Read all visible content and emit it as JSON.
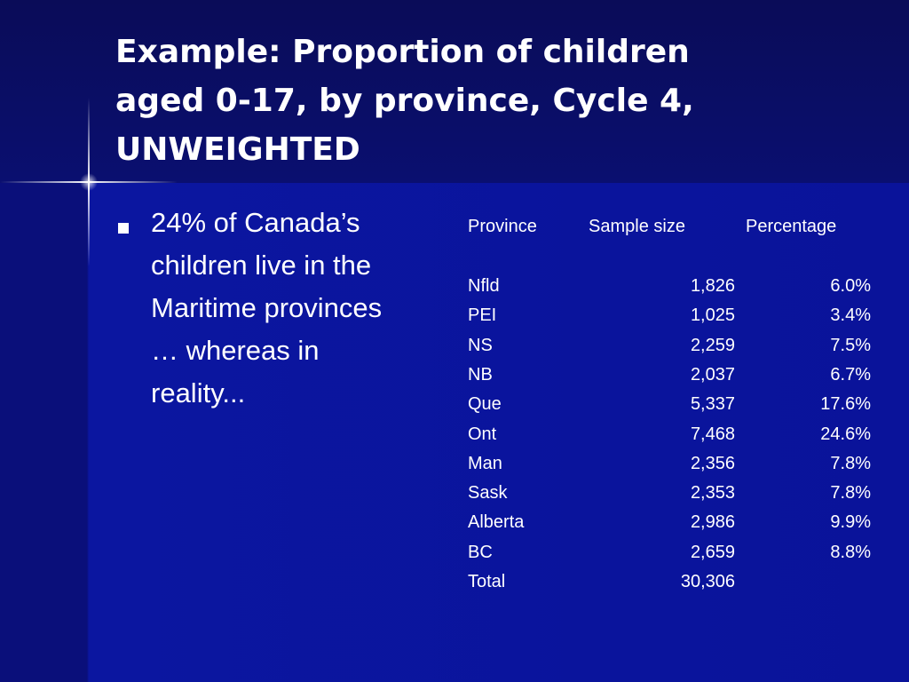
{
  "slide": {
    "title_lines": [
      "Example: Proportion of children",
      "aged 0-17, by province, Cycle 4,",
      "UNWEIGHTED"
    ],
    "bullet_lines": [
      "24% of Canada’s",
      "children live in the",
      "Maritime provinces",
      "…  whereas in",
      "reality..."
    ],
    "table": {
      "header": [
        "Province",
        "Sample size",
        "Percentage"
      ],
      "rows": [
        [
          "Nfld",
          "1,826",
          "6.0%"
        ],
        [
          "PEI",
          "1,025",
          "3.4%"
        ],
        [
          "NS",
          "2,259",
          "7.5%"
        ],
        [
          "NB",
          "2,037",
          "6.7%"
        ],
        [
          "Que",
          "5,337",
          "17.6%"
        ],
        [
          "Ont",
          "7,468",
          "24.6%"
        ],
        [
          "Man",
          "2,356",
          "7.8%"
        ],
        [
          "Sask",
          "2,353",
          "7.8%"
        ],
        [
          "Alberta",
          "2,986",
          "9.9%"
        ],
        [
          "BC",
          "2,659",
          "8.8%"
        ],
        [
          "Total",
          "30,306"
        ]
      ]
    }
  }
}
